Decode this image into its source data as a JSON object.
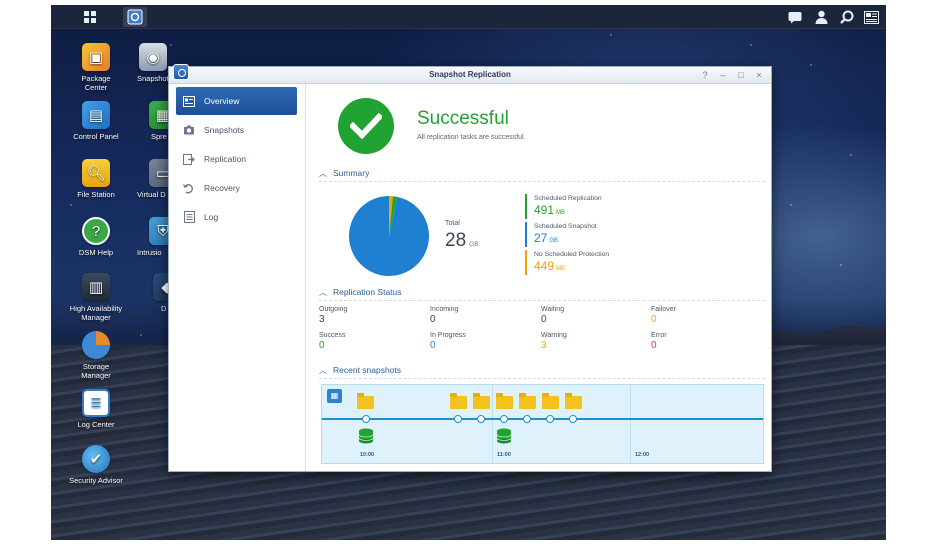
{
  "desktop": {
    "icons": [
      {
        "label": "Package\nCenter",
        "icon": "package-icon"
      },
      {
        "label": "Snapshot",
        "icon": "snapshot-icon"
      },
      {
        "label": "Control Panel",
        "icon": "control-panel-icon"
      },
      {
        "label": "Spre",
        "icon": "spreadsheet-icon"
      },
      {
        "label": "File Station",
        "icon": "folder-icon"
      },
      {
        "label": "Virtual D",
        "icon": "virtual-drive-icon"
      },
      {
        "label": "DSM Help",
        "icon": "help-icon"
      },
      {
        "label": "Intrusio",
        "icon": "shield-icon"
      },
      {
        "label": "High Availability\nManager",
        "icon": "server-icon"
      },
      {
        "label": "D",
        "icon": "app-icon"
      },
      {
        "label": "Storage\nManager",
        "icon": "storage-icon"
      },
      {
        "label": "Log Center",
        "icon": "log-icon"
      },
      {
        "label": "Security Advisor",
        "icon": "globe-check-icon"
      }
    ]
  },
  "window": {
    "title": "Snapshot Replication",
    "controls": [
      "?",
      "–",
      "□",
      "×"
    ]
  },
  "sidebar": {
    "items": [
      {
        "label": "Overview",
        "icon": "overview-icon",
        "active": true
      },
      {
        "label": "Snapshots",
        "icon": "camera-icon"
      },
      {
        "label": "Replication",
        "icon": "replication-icon"
      },
      {
        "label": "Recovery",
        "icon": "recovery-icon"
      },
      {
        "label": "Log",
        "icon": "log-icon"
      }
    ]
  },
  "overview": {
    "status_title": "Successful",
    "status_sub": "All replication tasks are successful.",
    "colors": {
      "success": "#20a332",
      "accent": "#1f8fd0",
      "warning": "#f0a500",
      "error": "#e03c31"
    }
  },
  "summary": {
    "heading": "Summary",
    "total_label": "Total",
    "total_value": "28",
    "total_unit": "GB",
    "legend": [
      {
        "name": "Scheduled Replication",
        "value": "491",
        "unit": "MB",
        "color": "#20a332"
      },
      {
        "name": "Scheduled Snapshot",
        "value": "27",
        "unit": "GB",
        "color": "#1f7fd0"
      },
      {
        "name": "No Scheduled Protection",
        "value": "449",
        "unit": "MB",
        "color": "#f0a500"
      }
    ]
  },
  "chart_data": {
    "type": "pie",
    "labels": [
      "Scheduled Replication",
      "Scheduled Snapshot",
      "No Scheduled Protection"
    ],
    "values_mb": [
      491,
      27648,
      449
    ],
    "colors": [
      "#20a332",
      "#1f7fd0",
      "#f0a500"
    ]
  },
  "replication_status": {
    "heading": "Replication Status",
    "cells": [
      {
        "label": "Outgoing",
        "value": "3",
        "color": "#3a4556"
      },
      {
        "label": "Incoming",
        "value": "0",
        "color": "#3a4556"
      },
      {
        "label": "Waiting",
        "value": "0",
        "color": "#3a4556"
      },
      {
        "label": "Failover",
        "value": "0",
        "color": "#f0a500"
      },
      {
        "label": "Success",
        "value": "0",
        "color": "#20a332"
      },
      {
        "label": "In Progress",
        "value": "0",
        "color": "#1f8fd0"
      },
      {
        "label": "Warning",
        "value": "3",
        "color": "#f0a500"
      },
      {
        "label": "Error",
        "value": "0",
        "color": "#e03c31"
      }
    ]
  },
  "recent_snapshots": {
    "heading": "Recent snapshots",
    "times": [
      "10:00",
      "11:00",
      "12:00"
    ]
  }
}
